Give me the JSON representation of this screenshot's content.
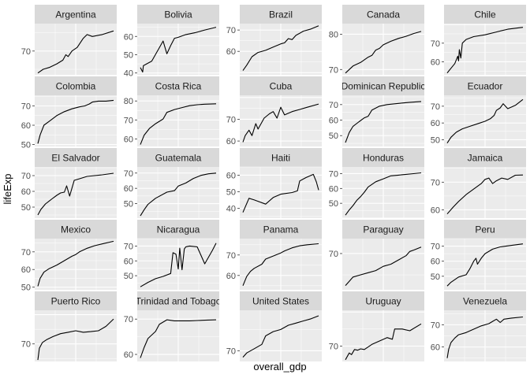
{
  "chart_data": {
    "type": "line",
    "xlabel": "overall_gdp",
    "ylabel": "lifeExp",
    "xticks": "none",
    "grid": "on",
    "panels": [
      {
        "country": "Argentina",
        "ylim": [
          63.5,
          77.5
        ],
        "yticks": [
          70
        ],
        "x": [
          0,
          0.07,
          0.15,
          0.25,
          0.33,
          0.37,
          0.4,
          0.45,
          0.52,
          0.6,
          0.65,
          0.72,
          0.85,
          1.0
        ],
        "y": [
          64.0,
          65.0,
          65.5,
          66.5,
          67.5,
          69.0,
          68.5,
          70.0,
          71.0,
          73.5,
          74.5,
          74.0,
          74.5,
          75.5
        ]
      },
      {
        "country": "Bolivia",
        "ylim": [
          39,
          67
        ],
        "yticks": [
          40,
          50,
          60
        ],
        "x": [
          0,
          0.03,
          0.04,
          0.15,
          0.3,
          0.35,
          0.4,
          0.45,
          0.5,
          0.6,
          0.72,
          0.85,
          1.0
        ],
        "y": [
          43.0,
          40.5,
          44.0,
          46.5,
          57.5,
          50.5,
          55.0,
          59.0,
          59.5,
          61.0,
          62.0,
          63.5,
          65.0
        ]
      },
      {
        "country": "Brazil",
        "ylim": [
          49,
          73
        ],
        "yticks": [
          60,
          70
        ],
        "x": [
          0,
          0.05,
          0.12,
          0.2,
          0.3,
          0.4,
          0.5,
          0.55,
          0.6,
          0.65,
          0.7,
          0.8,
          0.9,
          1.0
        ],
        "y": [
          51.0,
          53.5,
          57.5,
          59.5,
          60.5,
          62.0,
          63.5,
          64.0,
          66.0,
          65.5,
          67.5,
          69.5,
          70.5,
          72.0
        ]
      },
      {
        "country": "Canada",
        "ylim": [
          68.5,
          83
        ],
        "yticks": [
          70,
          80
        ],
        "x": [
          0,
          0.1,
          0.2,
          0.3,
          0.35,
          0.4,
          0.45,
          0.5,
          0.6,
          0.7,
          0.8,
          0.9,
          1.0
        ],
        "y": [
          69.0,
          71.0,
          72.0,
          73.5,
          74.0,
          75.5,
          76.0,
          77.0,
          78.0,
          78.8,
          79.4,
          80.2,
          80.8
        ]
      },
      {
        "country": "Chile",
        "ylim": [
          53,
          80.5
        ],
        "yticks": [
          60,
          70
        ],
        "x": [
          0,
          0.05,
          0.1,
          0.14,
          0.15,
          0.16,
          0.18,
          0.2,
          0.25,
          0.35,
          0.5,
          0.65,
          0.8,
          1.0
        ],
        "y": [
          54.0,
          56.5,
          59.0,
          63.0,
          60.5,
          66.5,
          62.0,
          70.0,
          72.0,
          73.5,
          74.5,
          76.0,
          77.5,
          78.5
        ]
      },
      {
        "country": "Colombia",
        "ylim": [
          49,
          75.5
        ],
        "yticks": [
          50,
          60,
          70
        ],
        "x": [
          0,
          0.03,
          0.08,
          0.15,
          0.25,
          0.35,
          0.45,
          0.55,
          0.62,
          0.68,
          0.72,
          0.8,
          0.9,
          1.0
        ],
        "y": [
          50.5,
          55.0,
          60.0,
          62.0,
          65.0,
          67.0,
          68.5,
          69.5,
          70.0,
          71.0,
          72.0,
          72.5,
          72.5,
          72.9
        ]
      },
      {
        "country": "Costa Rica",
        "ylim": [
          56,
          83
        ],
        "yticks": [
          60,
          70,
          80
        ],
        "x": [
          0,
          0.05,
          0.12,
          0.2,
          0.3,
          0.35,
          0.45,
          0.55,
          0.65,
          0.75,
          0.85,
          1.0
        ],
        "y": [
          57.0,
          62.0,
          65.5,
          68.0,
          70.5,
          74.0,
          75.5,
          76.5,
          77.5,
          78.0,
          78.3,
          78.5
        ]
      },
      {
        "country": "Cuba",
        "ylim": [
          57.5,
          81
        ],
        "yticks": [
          60,
          70
        ],
        "x": [
          0,
          0.03,
          0.08,
          0.12,
          0.17,
          0.2,
          0.28,
          0.35,
          0.4,
          0.45,
          0.5,
          0.55,
          0.65,
          0.75,
          0.85,
          1.0
        ],
        "y": [
          59.5,
          62.5,
          65.0,
          62.5,
          68.0,
          65.5,
          70.5,
          72.5,
          73.5,
          70.5,
          75.5,
          72.0,
          73.5,
          74.5,
          75.5,
          77.0
        ]
      },
      {
        "country": "Dominican Republic",
        "ylim": [
          43,
          76
        ],
        "yticks": [
          50,
          60,
          70
        ],
        "x": [
          0,
          0.05,
          0.1,
          0.18,
          0.25,
          0.3,
          0.35,
          0.45,
          0.55,
          0.65,
          0.75,
          0.85,
          1.0
        ],
        "y": [
          45.5,
          52.0,
          56.0,
          59.0,
          61.5,
          62.5,
          66.5,
          69.0,
          70.0,
          70.5,
          71.0,
          71.5,
          72.0
        ]
      },
      {
        "country": "Ecuador",
        "ylim": [
          46,
          76.5
        ],
        "yticks": [
          50,
          60,
          70
        ],
        "x": [
          0,
          0.05,
          0.12,
          0.2,
          0.3,
          0.4,
          0.5,
          0.57,
          0.62,
          0.65,
          0.7,
          0.74,
          0.8,
          0.9,
          1.0
        ],
        "y": [
          48.0,
          51.5,
          54.5,
          56.5,
          58.0,
          59.5,
          61.0,
          62.5,
          64.5,
          67.5,
          69.0,
          71.5,
          68.5,
          70.5,
          74.0
        ]
      },
      {
        "country": "El Salvador",
        "ylim": [
          43,
          75.5
        ],
        "yticks": [
          50,
          60,
          70
        ],
        "x": [
          0,
          0.04,
          0.1,
          0.18,
          0.25,
          0.3,
          0.35,
          0.38,
          0.42,
          0.45,
          0.48,
          0.55,
          0.65,
          0.75,
          0.85,
          1.0
        ],
        "y": [
          45.0,
          48.5,
          52.0,
          55.0,
          57.5,
          59.0,
          59.5,
          63.5,
          57.0,
          62.0,
          67.0,
          68.0,
          69.5,
          70.0,
          70.5,
          71.5
        ]
      },
      {
        "country": "Guatemala",
        "ylim": [
          40.5,
          74
        ],
        "yticks": [
          50,
          60,
          70
        ],
        "x": [
          0,
          0.05,
          0.1,
          0.2,
          0.35,
          0.45,
          0.5,
          0.6,
          0.7,
          0.8,
          0.9,
          1.0
        ],
        "y": [
          42.0,
          46.0,
          49.5,
          53.5,
          57.5,
          58.5,
          61.5,
          63.5,
          66.5,
          68.5,
          69.5,
          70.0
        ]
      },
      {
        "country": "Haiti",
        "ylim": [
          34,
          65
        ],
        "yticks": [
          40,
          50,
          60
        ],
        "x": [
          0,
          0.08,
          0.15,
          0.3,
          0.4,
          0.5,
          0.65,
          0.72,
          0.75,
          0.83,
          0.93,
          0.97,
          1.0
        ],
        "y": [
          37.5,
          46.0,
          45.0,
          42.5,
          46.5,
          48.5,
          49.5,
          50.5,
          56.5,
          58.5,
          60.5,
          56.0,
          51.0
        ]
      },
      {
        "country": "Honduras",
        "ylim": [
          40,
          74.5
        ],
        "yticks": [
          50,
          60,
          70
        ],
        "x": [
          0,
          0.05,
          0.1,
          0.15,
          0.2,
          0.25,
          0.3,
          0.4,
          0.5,
          0.6,
          0.7,
          0.8,
          0.9,
          1.0
        ],
        "y": [
          42.0,
          45.5,
          48.5,
          52.0,
          54.5,
          57.5,
          61.0,
          64.5,
          66.5,
          68.5,
          69.0,
          69.5,
          70.0,
          70.5
        ]
      },
      {
        "country": "Jamaica",
        "ylim": [
          57,
          75.5
        ],
        "yticks": [
          60,
          70
        ],
        "x": [
          0,
          0.08,
          0.15,
          0.25,
          0.35,
          0.45,
          0.5,
          0.55,
          0.6,
          0.65,
          0.72,
          0.8,
          0.9,
          1.0
        ],
        "y": [
          58.5,
          61.0,
          63.0,
          65.5,
          67.5,
          69.5,
          71.0,
          71.5,
          69.5,
          70.5,
          71.5,
          71.0,
          72.5,
          72.6
        ]
      },
      {
        "country": "Mexico",
        "ylim": [
          48.5,
          77.5
        ],
        "yticks": [
          50,
          60,
          70
        ],
        "x": [
          0,
          0.03,
          0.08,
          0.15,
          0.25,
          0.35,
          0.45,
          0.5,
          0.55,
          0.65,
          0.75,
          0.85,
          1.0
        ],
        "y": [
          50.5,
          55.0,
          58.5,
          60.5,
          62.5,
          65.0,
          67.5,
          68.5,
          70.0,
          72.0,
          73.5,
          74.5,
          76.0
        ]
      },
      {
        "country": "Nicaragua",
        "ylim": [
          40.5,
          75
        ],
        "yticks": [
          50,
          60,
          70
        ],
        "x": [
          0,
          0.1,
          0.2,
          0.3,
          0.4,
          0.43,
          0.47,
          0.5,
          0.52,
          0.55,
          0.58,
          0.6,
          0.65,
          0.75,
          0.85,
          0.95,
          1.0
        ],
        "y": [
          42.5,
          45.5,
          48.0,
          49.5,
          51.5,
          65.5,
          64.5,
          54.5,
          68.5,
          54.0,
          68.0,
          69.5,
          70.0,
          69.5,
          58.0,
          67.0,
          72.0
        ]
      },
      {
        "country": "Panama",
        "ylim": [
          53,
          78
        ],
        "yticks": [
          60,
          70
        ],
        "x": [
          0,
          0.05,
          0.1,
          0.15,
          0.25,
          0.3,
          0.4,
          0.5,
          0.55,
          0.65,
          0.75,
          0.85,
          1.0
        ],
        "y": [
          55.0,
          59.5,
          62.0,
          63.5,
          65.5,
          68.0,
          69.5,
          71.0,
          72.0,
          73.5,
          74.5,
          75.0,
          75.5
        ]
      },
      {
        "country": "Paraguay",
        "ylim": [
          61.5,
          73.5
        ],
        "yticks": [
          70
        ],
        "x": [
          0,
          0.05,
          0.1,
          0.2,
          0.3,
          0.4,
          0.5,
          0.6,
          0.7,
          0.8,
          0.85,
          0.9,
          1.0
        ],
        "y": [
          62.5,
          63.5,
          64.5,
          65.0,
          65.5,
          66.0,
          67.0,
          67.5,
          68.5,
          69.5,
          70.5,
          70.8,
          71.5
        ]
      },
      {
        "country": "Peru",
        "ylim": [
          41,
          75
        ],
        "yticks": [
          50,
          60,
          70
        ],
        "x": [
          0,
          0.05,
          0.15,
          0.25,
          0.3,
          0.35,
          0.38,
          0.4,
          0.45,
          0.5,
          0.6,
          0.7,
          0.85,
          1.0
        ],
        "y": [
          43.5,
          46.0,
          49.5,
          51.0,
          55.0,
          60.0,
          62.0,
          58.0,
          62.0,
          65.0,
          68.0,
          69.5,
          70.5,
          71.5
        ]
      },
      {
        "country": "Puerto Rico",
        "ylim": [
          64,
          81.5
        ],
        "yticks": [
          70
        ],
        "x": [
          0,
          0.02,
          0.06,
          0.12,
          0.2,
          0.3,
          0.4,
          0.5,
          0.6,
          0.7,
          0.8,
          0.9,
          1.0
        ],
        "y": [
          64.5,
          68.5,
          70.5,
          71.5,
          72.5,
          73.5,
          74.0,
          74.5,
          74.0,
          74.2,
          74.5,
          76.0,
          78.5
        ]
      },
      {
        "country": "Trinidad and Tobago",
        "ylim": [
          58,
          72.5
        ],
        "yticks": [
          60,
          70
        ],
        "x": [
          0,
          0.05,
          0.1,
          0.15,
          0.2,
          0.25,
          0.35,
          0.45,
          0.55,
          0.65,
          0.75,
          0.85,
          1.0
        ],
        "y": [
          59.0,
          62.0,
          64.5,
          65.5,
          66.5,
          68.5,
          69.8,
          69.5,
          69.5,
          69.5,
          69.6,
          69.7,
          69.8
        ]
      },
      {
        "country": "United States",
        "ylim": [
          67.5,
          79.5
        ],
        "yticks": [
          70
        ],
        "x": [
          0,
          0.05,
          0.15,
          0.25,
          0.3,
          0.4,
          0.5,
          0.6,
          0.7,
          0.8,
          0.9,
          1.0
        ],
        "y": [
          68.5,
          69.5,
          70.5,
          71.5,
          73.5,
          74.5,
          75.0,
          76.0,
          76.5,
          77.0,
          77.5,
          78.2
        ]
      },
      {
        "country": "Uruguay",
        "ylim": [
          65.5,
          80.5
        ],
        "yticks": [
          70
        ],
        "x": [
          0,
          0.05,
          0.08,
          0.12,
          0.16,
          0.2,
          0.25,
          0.35,
          0.45,
          0.55,
          0.62,
          0.65,
          0.75,
          0.85,
          1.0
        ],
        "y": [
          66.0,
          68.0,
          67.5,
          69.0,
          68.8,
          69.2,
          69.0,
          70.5,
          71.5,
          72.5,
          72.0,
          75.0,
          75.0,
          74.5,
          76.5
        ]
      },
      {
        "country": "Venezuela",
        "ylim": [
          53.5,
          76.5
        ],
        "yticks": [
          60,
          70
        ],
        "x": [
          0,
          0.02,
          0.05,
          0.1,
          0.15,
          0.25,
          0.35,
          0.45,
          0.55,
          0.6,
          0.65,
          0.7,
          0.75,
          0.85,
          1.0
        ],
        "y": [
          55.0,
          59.0,
          62.0,
          64.0,
          65.5,
          66.5,
          68.0,
          69.5,
          70.5,
          71.5,
          72.5,
          71.0,
          72.5,
          73.0,
          73.5
        ]
      }
    ]
  }
}
